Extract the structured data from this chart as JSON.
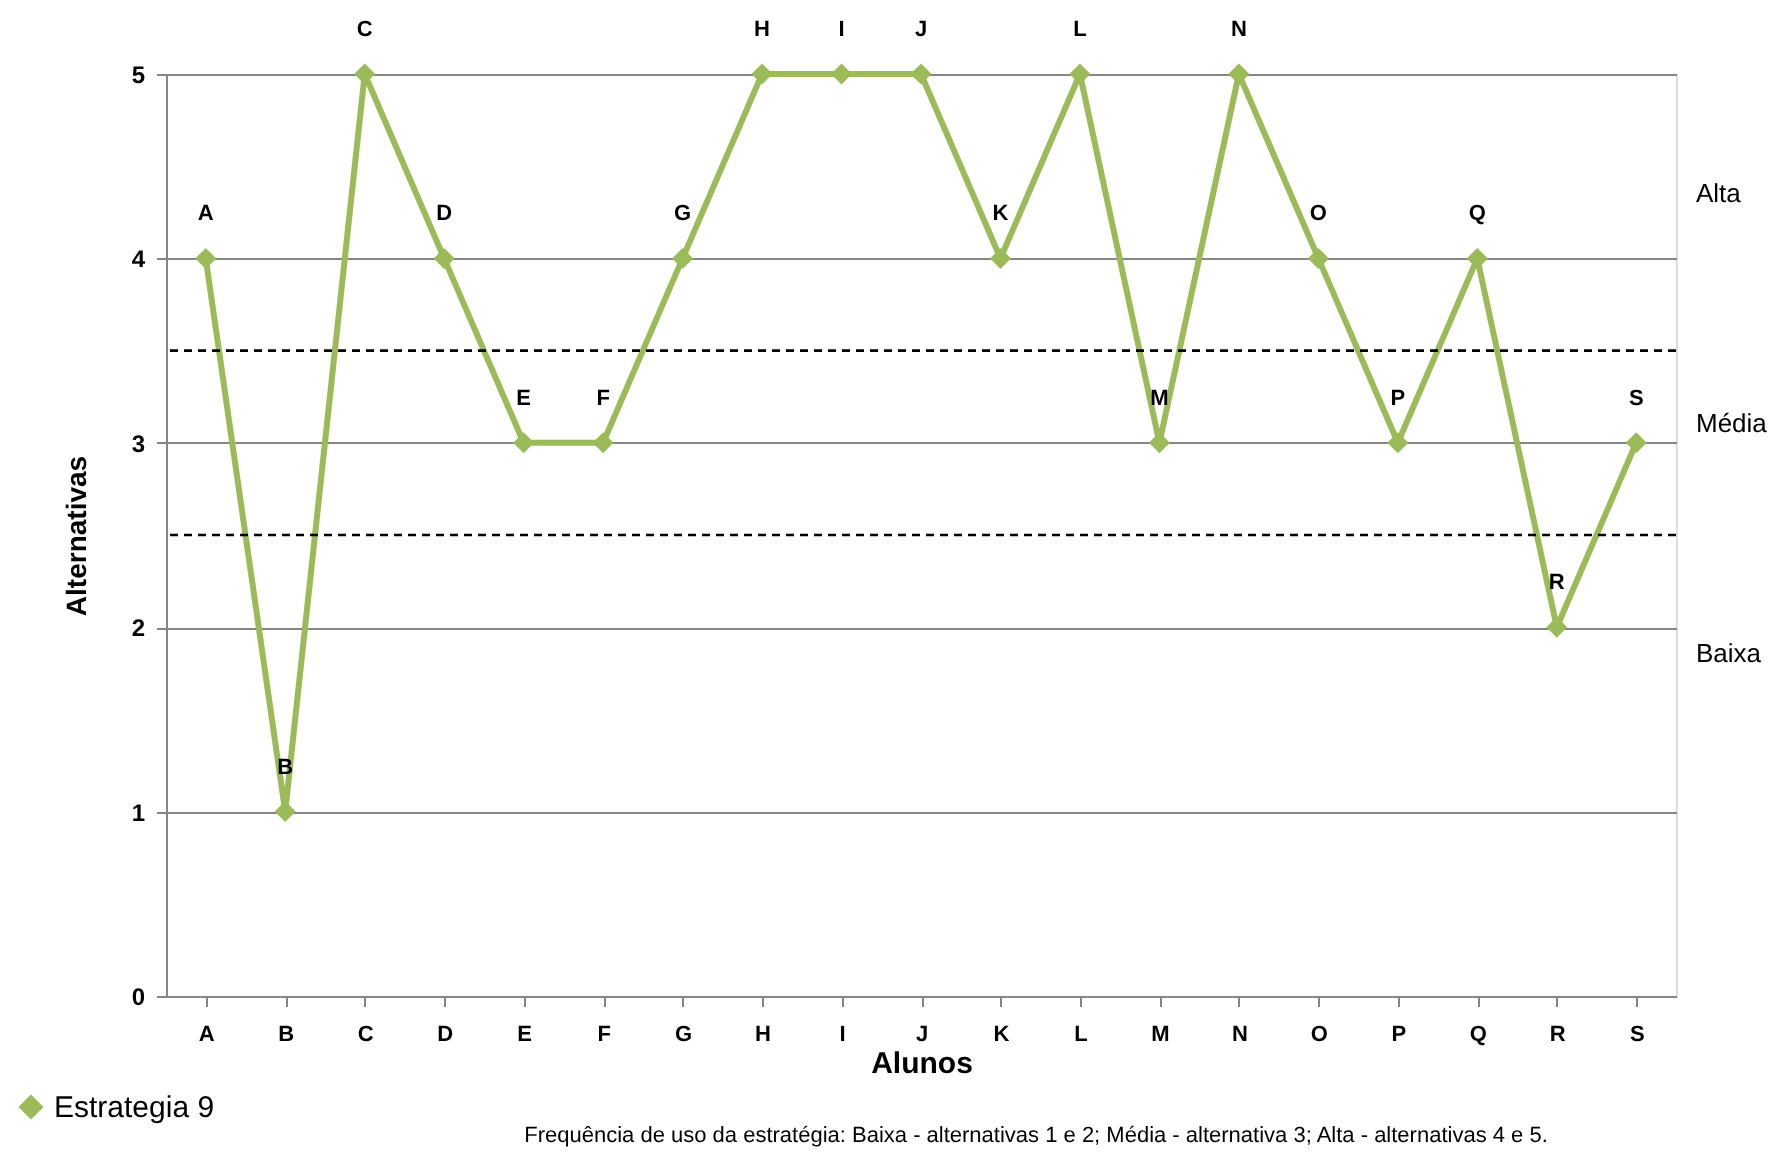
{
  "chart_data": {
    "type": "line",
    "xlabel": "Alunos",
    "ylabel": "Alternativas",
    "categories": [
      "A",
      "B",
      "C",
      "D",
      "E",
      "F",
      "G",
      "H",
      "I",
      "J",
      "K",
      "L",
      "M",
      "N",
      "O",
      "P",
      "Q",
      "R",
      "S"
    ],
    "series": [
      {
        "name": "Estrategia 9",
        "color": "#9bbb59",
        "values": [
          4,
          1,
          5,
          4,
          3,
          3,
          4,
          5,
          5,
          5,
          4,
          5,
          3,
          5,
          4,
          3,
          4,
          2,
          3
        ],
        "value_labels": [
          "A",
          "B",
          "C",
          "D",
          "E",
          "F",
          "G",
          "H",
          "I",
          "J",
          "K",
          "L",
          "M",
          "N",
          "O",
          "P",
          "Q",
          "R",
          "S"
        ]
      }
    ],
    "ylim": [
      0,
      5
    ],
    "yticks": [
      0,
      1,
      2,
      3,
      4,
      5
    ],
    "grid": "y",
    "legend": "bottom left",
    "marker": "diamond",
    "line_style": "solid",
    "ref_lines": [
      {
        "axis": "y",
        "value": 3.5,
        "color": "#000000",
        "line_style": "dashed"
      },
      {
        "axis": "y",
        "value": 2.5,
        "color": "#000000",
        "line_style": "dashed"
      }
    ],
    "annotations": [
      "Alta",
      "Média",
      "Baixa",
      "Frequência de uso da  estratégia:  Baixa - alternativas 1 e 2;  Média - alternativa 3;  Alta - alternativas 4 e 5."
    ]
  }
}
